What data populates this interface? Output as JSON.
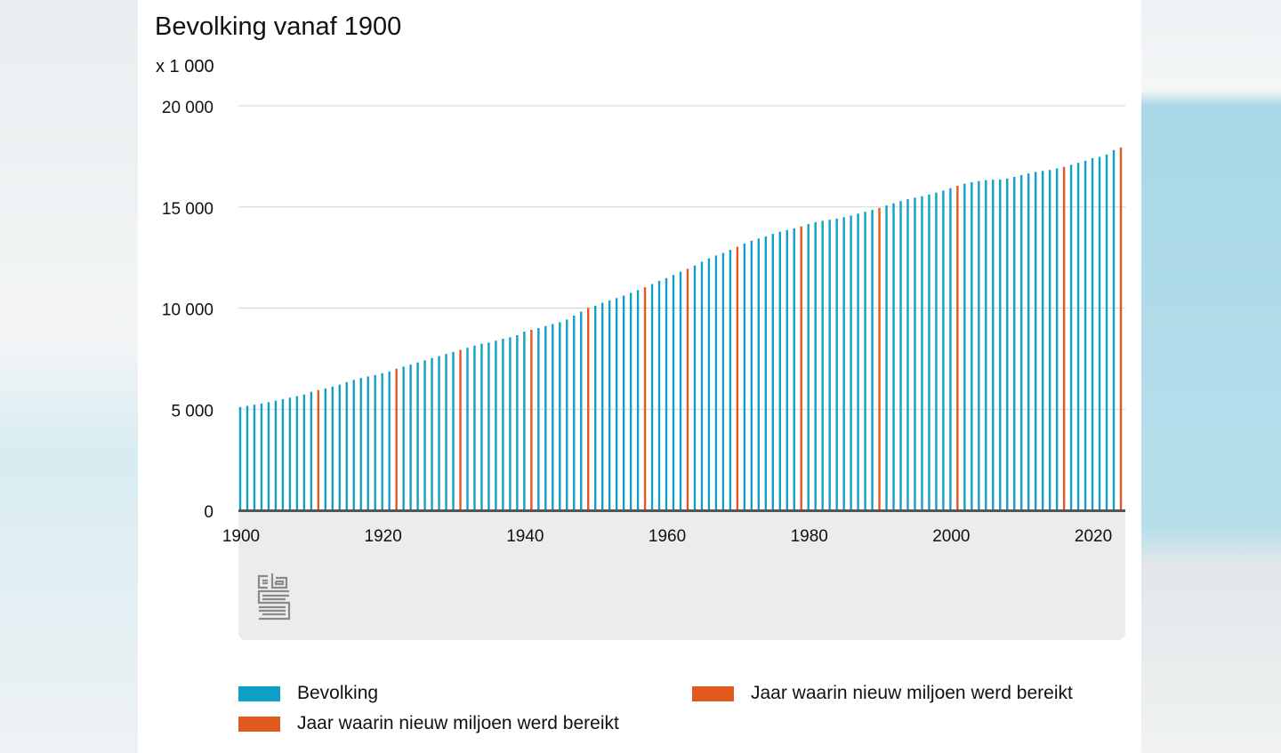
{
  "title": "Bevolking vanaf 1900",
  "unit_label": "x 1 000",
  "colors": {
    "population": "#0fa0c8",
    "milestone": "#e05a1e",
    "axis": "#555555",
    "grid": "#d6d6d6"
  },
  "logo": {
    "name": "cbs-logo"
  },
  "legend": [
    {
      "label": "Bevolking",
      "color": "#0fa0c8"
    },
    {
      "label": "Jaar waarin nieuw miljoen werd bereikt",
      "color": "#e05a1e"
    },
    {
      "label": "Jaar waarin nieuw miljoen werd bereikt",
      "color": "#e05a1e"
    }
  ],
  "chart_data": {
    "type": "bar",
    "title": "Bevolking vanaf 1900",
    "ylabel": "x 1 000",
    "xlim": [
      1900,
      2024
    ],
    "ylim": [
      0,
      20000
    ],
    "yticks": [
      {
        "value": 0,
        "label": "0"
      },
      {
        "value": 5000,
        "label": "5 000"
      },
      {
        "value": 10000,
        "label": "10 000"
      },
      {
        "value": 15000,
        "label": "15 000"
      },
      {
        "value": 20000,
        "label": "20 000"
      }
    ],
    "xticks": [
      {
        "value": 1900,
        "label": "1900"
      },
      {
        "value": 1920,
        "label": "1920"
      },
      {
        "value": 1940,
        "label": "1940"
      },
      {
        "value": 1960,
        "label": "1960"
      },
      {
        "value": 1980,
        "label": "1980"
      },
      {
        "value": 2000,
        "label": "2000"
      },
      {
        "value": 2020,
        "label": "2020"
      }
    ],
    "grid": true,
    "legend_position": "bottom",
    "series": [
      {
        "name": "Bevolking",
        "color": "#0fa0c8",
        "start_year": 1900,
        "values": [
          5104,
          5163,
          5221,
          5280,
          5347,
          5417,
          5497,
          5569,
          5644,
          5726,
          5858,
          5946,
          6023,
          6114,
          6213,
          6340,
          6450,
          6542,
          6617,
          6688,
          6779,
          6865,
          7001,
          7102,
          7201,
          7313,
          7416,
          7526,
          7626,
          7732,
          7832,
          7935,
          8038,
          8141,
          8235,
          8290,
          8389,
          8481,
          8559,
          8659,
          8834,
          8923,
          9009,
          9109,
          9210,
          9300,
          9434,
          9629,
          9824,
          10012,
          10114,
          10264,
          10377,
          10493,
          10615,
          10751,
          10888,
          11026,
          11187,
          11348,
          11480,
          11637,
          11797,
          11943,
          12101,
          12293,
          12455,
          12597,
          12725,
          12873,
          13032,
          13194,
          13330,
          13438,
          13545,
          13666,
          13774,
          13856,
          13942,
          14038,
          14148,
          14247,
          14313,
          14367,
          14424,
          14491,
          14572,
          14665,
          14760,
          14849,
          14952,
          15070,
          15184,
          15290,
          15383,
          15459,
          15531,
          15611,
          15707,
          15812,
          15926,
          16046,
          16149,
          16225,
          16281,
          16320,
          16346,
          16358,
          16405,
          16486,
          16575,
          16656,
          16730,
          16780,
          16829,
          16901,
          16979,
          17082,
          17181,
          17283,
          17408,
          17475,
          17591,
          17811,
          17942
        ]
      },
      {
        "name": "Jaar waarin nieuw miljoen werd bereikt",
        "color": "#e05a1e",
        "years": [
          1911,
          1922,
          1931,
          1941,
          1949,
          1957,
          1963,
          1970,
          1979,
          1990,
          2001,
          2016,
          2024
        ]
      }
    ]
  }
}
